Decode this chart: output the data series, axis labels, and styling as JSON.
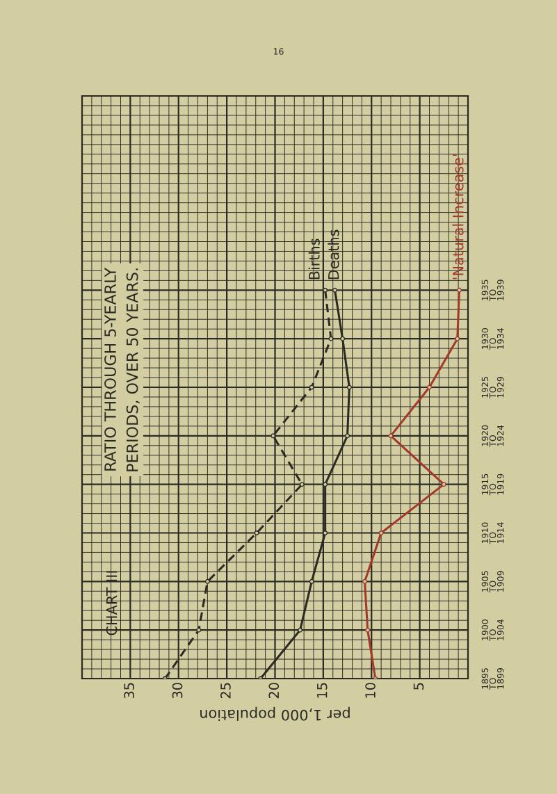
{
  "chart_data": {
    "type": "line",
    "orientation": "horizontal",
    "title": "RATIO THROUGH 5-YEARLY\nPERIODS, OVER 50 YEARS.",
    "subtitle": "CHART III",
    "xlabel": "per 1,000 population",
    "annotations": [
      "16"
    ],
    "categories": [
      "1935\nTO\n1939",
      "1930\nTO\n1934",
      "1925\nTO\n1929",
      "1920\nTO\n1924",
      "1915\nTO\n1919",
      "1910\nTO\n1914",
      "1905\nTO\n1909",
      "1900\nTO\n1904",
      "1895\nTO\n1899"
    ],
    "series": [
      {
        "name": "Births",
        "color": "#2b2b24",
        "line_style": "dashed",
        "values": [
          14.8,
          14.2,
          16.2,
          20.2,
          17.2,
          21.9,
          27.0,
          27.9,
          31.4
        ]
      },
      {
        "name": "Deaths",
        "color": "#2b2b24",
        "line_style": "solid",
        "values": [
          13.8,
          13.0,
          12.3,
          12.5,
          14.8,
          14.8,
          16.2,
          17.4,
          21.5
        ]
      },
      {
        "name": "'Natural Increase'",
        "color": "#a3392b",
        "line_style": "solid",
        "values": [
          0.9,
          1.1,
          4.0,
          8.0,
          2.5,
          9.0,
          10.7,
          10.4,
          9.6
        ]
      }
    ],
    "xlim": [
      40,
      0
    ],
    "xticks": [
      35,
      30,
      25,
      20,
      15,
      10,
      5
    ],
    "grid": true,
    "legend": false,
    "marker": "circle"
  }
}
